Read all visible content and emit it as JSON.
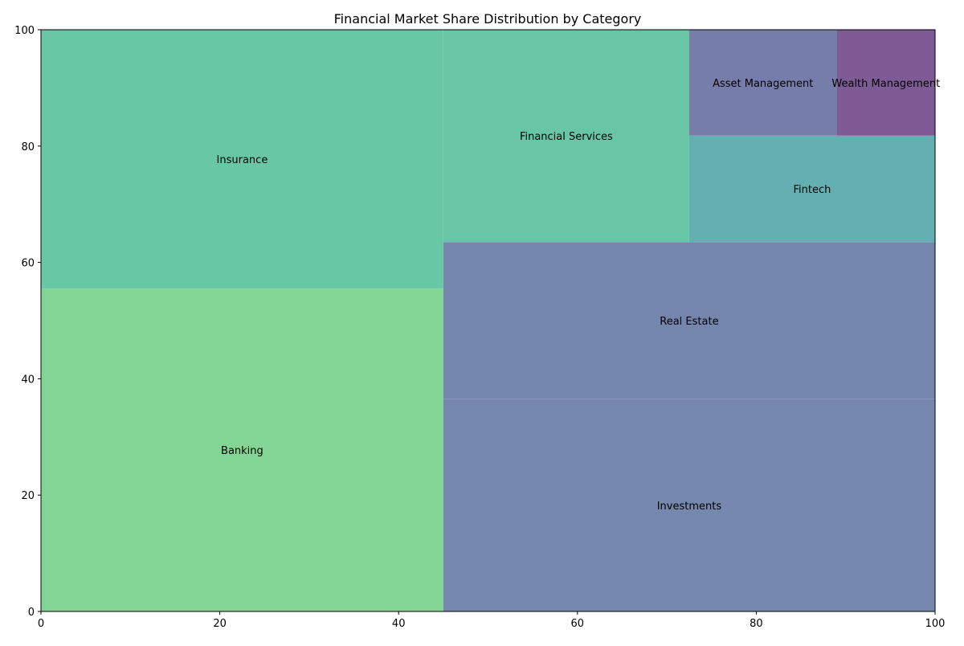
{
  "chart_data": {
    "type": "treemap",
    "title": "Financial Market Share Distribution by Category",
    "xlabel": "",
    "ylabel": "",
    "xlim": [
      0,
      100
    ],
    "ylim": [
      0,
      100
    ],
    "xticks": [
      "0",
      "20",
      "40",
      "60",
      "80",
      "100"
    ],
    "yticks": [
      "0",
      "20",
      "40",
      "60",
      "80",
      "100"
    ],
    "grid": false,
    "rects": [
      {
        "label": "Banking",
        "x": 0,
        "y": 0,
        "w": 45,
        "h": 55.5,
        "color": "#83d596"
      },
      {
        "label": "Insurance",
        "x": 0,
        "y": 55.5,
        "w": 45,
        "h": 44.5,
        "color": "#68c8a5"
      },
      {
        "label": "Investments",
        "x": 45,
        "y": 0,
        "w": 55,
        "h": 36.5,
        "color": "#7688ae"
      },
      {
        "label": "Real Estate",
        "x": 45,
        "y": 36.5,
        "w": 55,
        "h": 27,
        "color": "#7586ad"
      },
      {
        "label": "Financial Services",
        "x": 45,
        "y": 63.5,
        "w": 27.5,
        "h": 36.5,
        "color": "#68c6a7"
      },
      {
        "label": "Fintech",
        "x": 72.5,
        "y": 63.5,
        "w": 27.5,
        "h": 18.3,
        "color": "#63afb2"
      },
      {
        "label": "Asset Management",
        "x": 72.5,
        "y": 81.8,
        "w": 16.5,
        "h": 18.2,
        "color": "#777dab"
      },
      {
        "label": "Wealth Management",
        "x": 89,
        "y": 81.8,
        "w": 11,
        "h": 18.2,
        "color": "#7e5b94"
      }
    ]
  }
}
